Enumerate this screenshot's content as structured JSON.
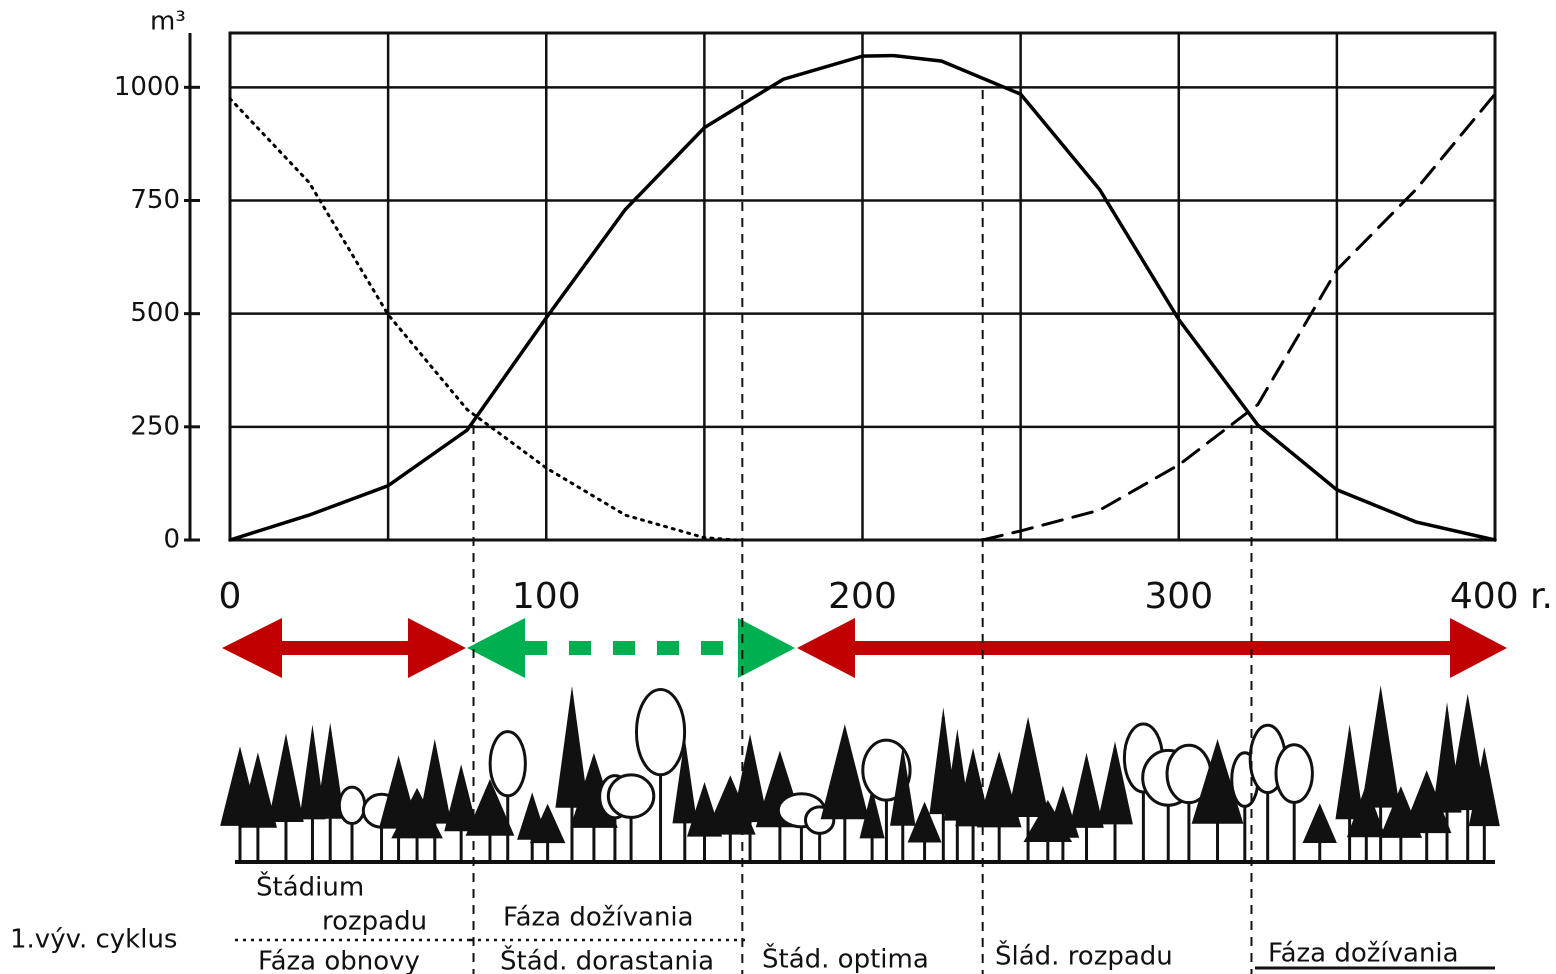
{
  "chart_data": {
    "type": "line",
    "y_label": "m³",
    "xlim": [
      0,
      400
    ],
    "ylim": [
      0,
      1120
    ],
    "xticks": [
      0,
      100,
      200,
      300,
      {
        "value": 400,
        "label": "400 r."
      }
    ],
    "yticks": [
      0,
      250,
      500,
      750,
      1000
    ],
    "xgrid": [
      0,
      50,
      100,
      150,
      200,
      250,
      300,
      350,
      400
    ],
    "grid": true,
    "phase_boundaries": [
      77,
      162,
      238,
      323
    ],
    "series": [
      {
        "color": "#000000",
        "style": "solid",
        "x": [
          0,
          25,
          50,
          75,
          100,
          125,
          150,
          175,
          200,
          210,
          225,
          250,
          275,
          300,
          325,
          350,
          375,
          400
        ],
        "values": [
          0,
          55,
          120,
          243,
          491,
          730,
          911,
          1018,
          1069,
          1070,
          1058,
          985,
          774,
          487,
          254,
          111,
          40,
          0
        ]
      },
      {
        "color": "#000000",
        "style": "dotted",
        "x": [
          0,
          25,
          50,
          75,
          100,
          125,
          150,
          160
        ],
        "values": [
          975,
          790,
          498,
          288,
          159,
          55,
          5,
          0
        ]
      },
      {
        "color": "#000000",
        "style": "dashed",
        "x": [
          238,
          250,
          275,
          300,
          325,
          350,
          375,
          400
        ],
        "values": [
          0,
          20,
          66,
          166,
          299,
          597,
          774,
          985
        ]
      }
    ],
    "row_label": "1.výv. cyklus",
    "phases": [
      {
        "top": "Štádium",
        "top2": "rozpadu",
        "bottom": "Fáza obnovy"
      },
      {
        "top": "Fáza dožívania",
        "bottom": "Štád. dorastania"
      },
      {
        "bottom": "Štád. optima"
      },
      {
        "bottom": "Šlád. rozpadu"
      },
      {
        "bottom": "Fáza dožívania"
      }
    ]
  }
}
